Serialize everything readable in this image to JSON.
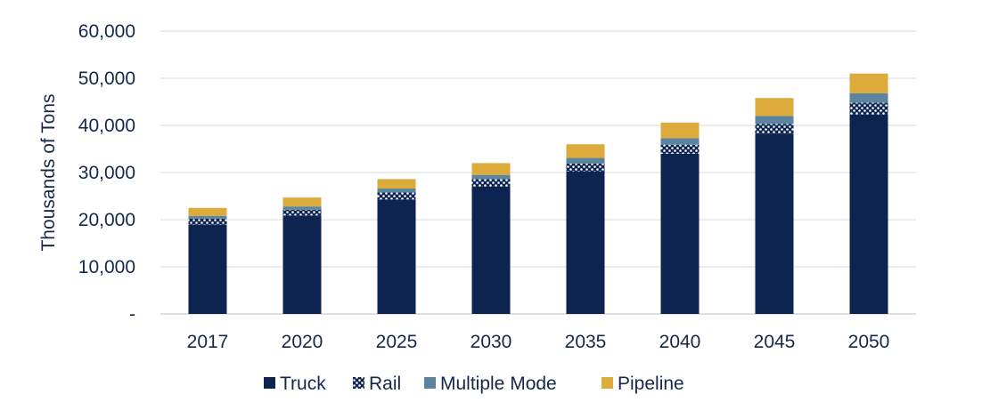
{
  "chart_data": {
    "type": "bar",
    "stacked": true,
    "title": "",
    "xlabel": "",
    "ylabel": "Thousands of Tons",
    "ylim": [
      0,
      60000
    ],
    "yticks": [
      0,
      10000,
      20000,
      30000,
      40000,
      50000,
      60000
    ],
    "ytick_labels": [
      "-",
      "10,000",
      "20,000",
      "30,000",
      "40,000",
      "50,000",
      "60,000"
    ],
    "grid": true,
    "legend_position": "bottom",
    "categories": [
      "2017",
      "2020",
      "2025",
      "2030",
      "2035",
      "2040",
      "2045",
      "2050"
    ],
    "series": [
      {
        "name": "Truck",
        "color": "#0d2350",
        "pattern": "solid",
        "values": [
          18900,
          20900,
          24300,
          27000,
          30200,
          34000,
          38200,
          42300
        ]
      },
      {
        "name": "Rail",
        "color": "#0d2350",
        "pattern": "dots",
        "values": [
          1300,
          1200,
          1500,
          1600,
          1700,
          1900,
          2100,
          2500
        ]
      },
      {
        "name": "Multiple Mode",
        "color": "#5b84a0",
        "pattern": "solid",
        "values": [
          600,
          700,
          800,
          900,
          1200,
          1400,
          1700,
          2000
        ]
      },
      {
        "name": "Pipeline",
        "color": "#dcab3c",
        "pattern": "solid",
        "values": [
          1700,
          1900,
          2000,
          2500,
          2900,
          3300,
          3800,
          4200
        ]
      }
    ]
  }
}
